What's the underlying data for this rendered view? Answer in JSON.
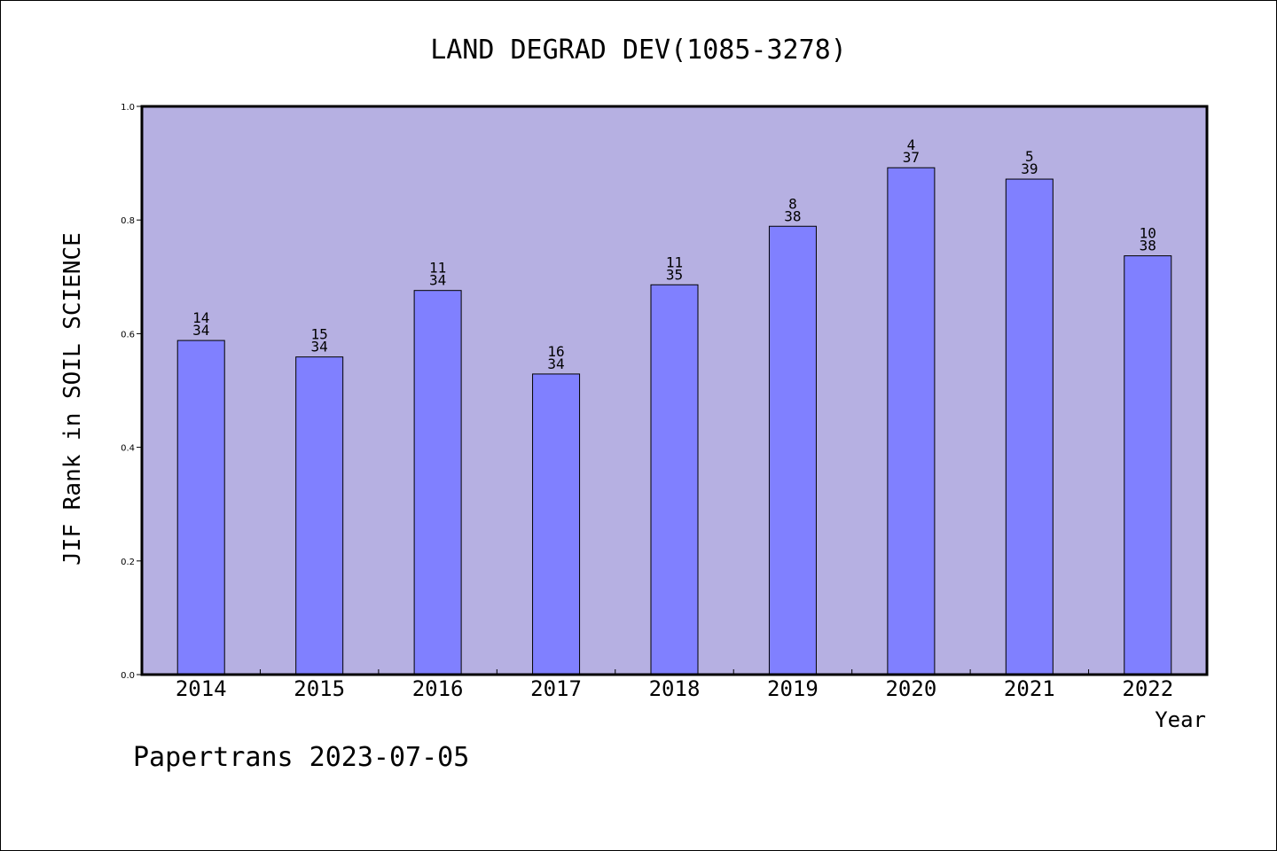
{
  "chart_data": {
    "type": "bar",
    "title": "LAND DEGRAD DEV(1085-3278)",
    "xlabel": "Year",
    "ylabel": "JIF Rank in SOIL SCIENCE",
    "ylim": [
      0,
      1.0
    ],
    "yticks": [
      "0.0",
      "0.2",
      "0.4",
      "0.6",
      "0.8",
      "1.0"
    ],
    "categories": [
      "2014",
      "2015",
      "2016",
      "2017",
      "2018",
      "2019",
      "2020",
      "2021",
      "2022"
    ],
    "values": [
      0.588,
      0.559,
      0.676,
      0.529,
      0.686,
      0.789,
      0.892,
      0.872,
      0.737
    ],
    "ranks": [
      "14",
      "15",
      "11",
      "16",
      "11",
      "8",
      "4",
      "5",
      "10"
    ],
    "totals": [
      "34",
      "34",
      "34",
      "34",
      "35",
      "38",
      "37",
      "39",
      "38"
    ],
    "grid": false,
    "colors": {
      "plot_background": "#b6b0e2",
      "bar_fill": "#8080ff",
      "bar_stroke": "#000000"
    }
  },
  "footer": "Papertrans 2023-07-05"
}
